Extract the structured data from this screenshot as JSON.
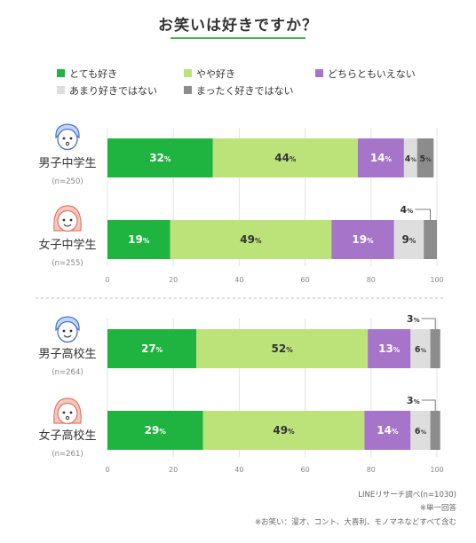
{
  "chart_data": {
    "type": "bar",
    "stacked": "horizontal-100",
    "title": "お笑いは好きですか？",
    "legend": [
      {
        "name": "とても好き",
        "color": "#1fb33f"
      },
      {
        "name": "やや好き",
        "color": "#bce27a"
      },
      {
        "name": "どちらともいえない",
        "color": "#a674c9"
      },
      {
        "name": "あまり好きではない",
        "color": "#dedede"
      },
      {
        "name": "まったく好きではない",
        "color": "#8c8c8c"
      }
    ],
    "xlim": [
      0,
      100
    ],
    "xticks": [
      "0",
      "20",
      "40",
      "60",
      "80",
      "100"
    ],
    "unit": "%",
    "groups": [
      {
        "label": "男子中学生",
        "n": "(n=250)",
        "values": [
          32,
          44,
          14,
          4,
          5
        ]
      },
      {
        "label": "女子中学生",
        "n": "(n=255)",
        "values": [
          19,
          49,
          19,
          9,
          4
        ]
      },
      {
        "label": "男子高校生",
        "n": "(n=264)",
        "values": [
          27,
          52,
          13,
          6,
          3
        ]
      },
      {
        "label": "女子高校生",
        "n": "(n=261)",
        "values": [
          29,
          49,
          14,
          6,
          3
        ]
      }
    ]
  },
  "footer": {
    "source": "LINEリサーチ調べ(n=1030)",
    "note1": "※単一回答",
    "note2": "※お笑い：漫才、コント、大喜利、モノマネなどすべて含む"
  }
}
